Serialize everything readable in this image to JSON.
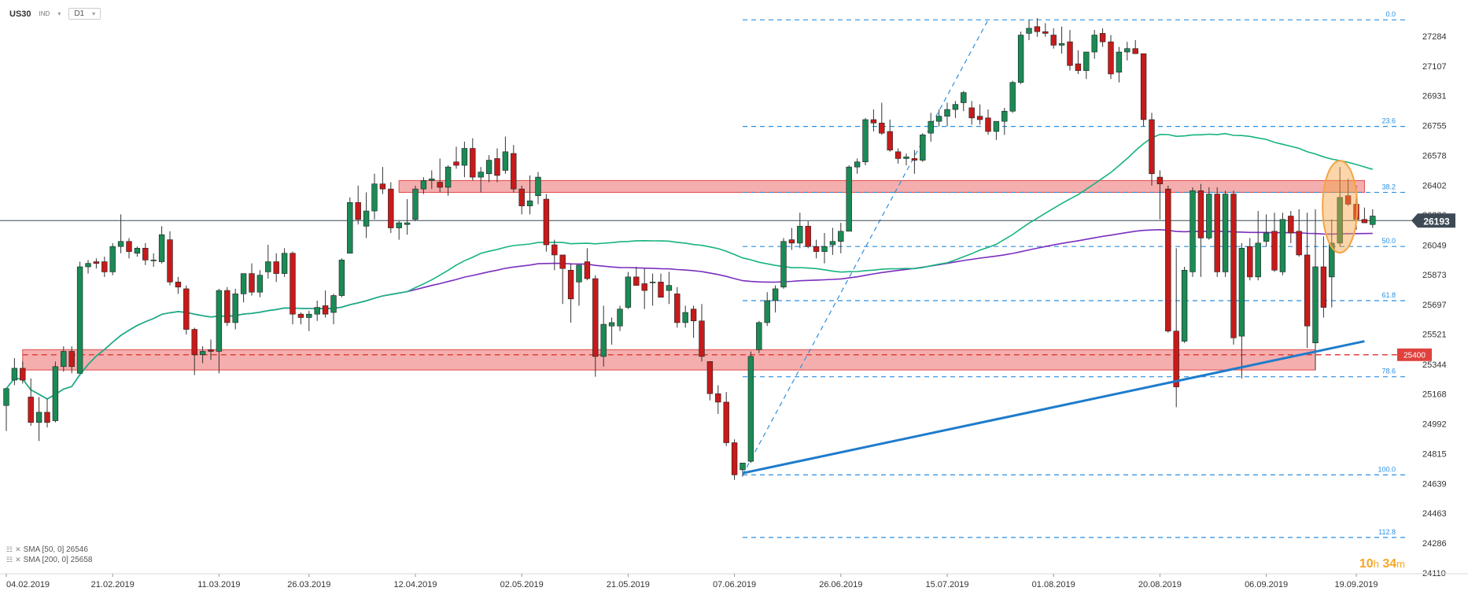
{
  "header": {
    "symbol": "US30",
    "instrument_type": "IND",
    "timeframe": "D1"
  },
  "legend": {
    "sma50": "SMA [50, 0] 26546",
    "sma200": "SMA [200, 0] 25658"
  },
  "timer": {
    "hours": "10",
    "h_unit": "h",
    "minutes": "34",
    "m_unit": "m"
  },
  "colors": {
    "bull": "#1b8a55",
    "bear": "#c71a1a",
    "sma50": "#16b381",
    "sma200": "#7b2fbf",
    "fib": "#2b8fe0",
    "trendline": "#1e7ccc",
    "zone_fill": "#f3a0a0",
    "zone_stroke": "#e04848",
    "price_tag": "#3d4a55",
    "level_tag": "#e0413d",
    "highlight": "#f5a342"
  },
  "chart_data": {
    "type": "candlestick",
    "instrument": "US30",
    "timeframe": "D1",
    "ylim": [
      24110,
      27460
    ],
    "y_ticks": [
      27284,
      27107,
      26931,
      26755,
      26578,
      26402,
      26226,
      26049,
      25873,
      25697,
      25521,
      25344,
      25168,
      24992,
      24815,
      24639,
      24463,
      24286,
      24110
    ],
    "x_tick_labels": [
      {
        "label": "04.02.2019",
        "bar": 0
      },
      {
        "label": "21.02.2019",
        "bar": 13
      },
      {
        "label": "11.03.2019",
        "bar": 26
      },
      {
        "label": "26.03.2019",
        "bar": 37
      },
      {
        "label": "12.04.2019",
        "bar": 50
      },
      {
        "label": "02.05.2019",
        "bar": 63
      },
      {
        "label": "21.05.2019",
        "bar": 76
      },
      {
        "label": "07.06.2019",
        "bar": 89
      },
      {
        "label": "26.06.2019",
        "bar": 102
      },
      {
        "label": "15.07.2019",
        "bar": 115
      },
      {
        "label": "01.08.2019",
        "bar": 128
      },
      {
        "label": "20.08.2019",
        "bar": 141
      },
      {
        "label": "06.09.2019",
        "bar": 154
      },
      {
        "label": "19.09.2019",
        "bar": 165
      }
    ],
    "candles_ohlc": [
      [
        25100,
        25200,
        24950,
        25200
      ],
      [
        25250,
        25380,
        25220,
        25320
      ],
      [
        25320,
        25360,
        25230,
        25250
      ],
      [
        25150,
        25260,
        24980,
        25000
      ],
      [
        25000,
        25150,
        24890,
        25060
      ],
      [
        25060,
        25140,
        24970,
        25000
      ],
      [
        25010,
        25360,
        25000,
        25330
      ],
      [
        25330,
        25450,
        25300,
        25420
      ],
      [
        25420,
        25450,
        25290,
        25330
      ],
      [
        25290,
        25950,
        25290,
        25920
      ],
      [
        25920,
        25960,
        25880,
        25940
      ],
      [
        25950,
        25970,
        25910,
        25940
      ],
      [
        25950,
        25980,
        25860,
        25890
      ],
      [
        25890,
        26060,
        25870,
        26040
      ],
      [
        26040,
        26230,
        26000,
        26070
      ],
      [
        26070,
        26090,
        25970,
        26010
      ],
      [
        26000,
        26040,
        25980,
        26030
      ],
      [
        26030,
        26060,
        25930,
        25960
      ],
      [
        25960,
        26000,
        25920,
        25960
      ],
      [
        25950,
        26160,
        25940,
        26110
      ],
      [
        26080,
        26130,
        25810,
        25830
      ],
      [
        25830,
        25860,
        25760,
        25800
      ],
      [
        25790,
        25810,
        25520,
        25550
      ],
      [
        25550,
        25560,
        25280,
        25400
      ],
      [
        25400,
        25450,
        25350,
        25420
      ],
      [
        25430,
        25490,
        25370,
        25420
      ],
      [
        25420,
        25790,
        25290,
        25780
      ],
      [
        25780,
        25800,
        25570,
        25590
      ],
      [
        25590,
        25790,
        25550,
        25760
      ],
      [
        25760,
        25880,
        25710,
        25880
      ],
      [
        25880,
        25940,
        25750,
        25770
      ],
      [
        25770,
        25900,
        25740,
        25870
      ],
      [
        25890,
        26050,
        25850,
        25950
      ],
      [
        25950,
        26000,
        25830,
        25880
      ],
      [
        25880,
        26030,
        25860,
        26000
      ],
      [
        26000,
        26010,
        25580,
        25640
      ],
      [
        25640,
        25650,
        25580,
        25620
      ],
      [
        25620,
        25660,
        25540,
        25640
      ],
      [
        25640,
        25720,
        25600,
        25680
      ],
      [
        25690,
        25780,
        25620,
        25640
      ],
      [
        25650,
        25760,
        25580,
        25750
      ],
      [
        25750,
        25970,
        25740,
        25960
      ],
      [
        26000,
        26330,
        26000,
        26300
      ],
      [
        26300,
        26400,
        26170,
        26200
      ],
      [
        26160,
        26360,
        26090,
        26250
      ],
      [
        26250,
        26470,
        26200,
        26410
      ],
      [
        26410,
        26510,
        26350,
        26380
      ],
      [
        26380,
        26420,
        26120,
        26150
      ],
      [
        26150,
        26190,
        26080,
        26180
      ],
      [
        26170,
        26320,
        26110,
        26180
      ],
      [
        26200,
        26400,
        26190,
        26380
      ],
      [
        26380,
        26450,
        26350,
        26430
      ],
      [
        26430,
        26490,
        26380,
        26440
      ],
      [
        26420,
        26560,
        26360,
        26390
      ],
      [
        26390,
        26520,
        26340,
        26510
      ],
      [
        26540,
        26630,
        26500,
        26520
      ],
      [
        26520,
        26660,
        26450,
        26620
      ],
      [
        26620,
        26680,
        26430,
        26450
      ],
      [
        26450,
        26510,
        26360,
        26480
      ],
      [
        26470,
        26580,
        26420,
        26550
      ],
      [
        26560,
        26620,
        26420,
        26460
      ],
      [
        26490,
        26690,
        26470,
        26600
      ],
      [
        26590,
        26640,
        26360,
        26380
      ],
      [
        26380,
        26400,
        26230,
        26280
      ],
      [
        26280,
        26460,
        26230,
        26310
      ],
      [
        26340,
        26480,
        26290,
        26450
      ],
      [
        26320,
        26350,
        26010,
        26050
      ],
      [
        26050,
        26080,
        25900,
        25990
      ],
      [
        25990,
        25990,
        25700,
        25910
      ],
      [
        25900,
        25940,
        25590,
        25730
      ],
      [
        25830,
        25920,
        25690,
        25930
      ],
      [
        25950,
        26030,
        25840,
        25850
      ],
      [
        25850,
        25870,
        25270,
        25390
      ],
      [
        25390,
        25690,
        25330,
        25580
      ],
      [
        25570,
        25620,
        25460,
        25590
      ],
      [
        25570,
        25690,
        25540,
        25670
      ],
      [
        25680,
        25890,
        25670,
        25860
      ],
      [
        25860,
        25920,
        25810,
        25810
      ],
      [
        25820,
        25910,
        25670,
        25780
      ],
      [
        25830,
        25880,
        25690,
        25830
      ],
      [
        25830,
        25880,
        25740,
        25740
      ],
      [
        25780,
        25890,
        25700,
        25810
      ],
      [
        25760,
        25800,
        25560,
        25590
      ],
      [
        25590,
        25690,
        25560,
        25650
      ],
      [
        25670,
        25690,
        25500,
        25600
      ],
      [
        25600,
        25700,
        25360,
        25390
      ],
      [
        25360,
        25360,
        25130,
        25170
      ],
      [
        25170,
        25220,
        25050,
        25120
      ],
      [
        25120,
        25180,
        24860,
        24880
      ],
      [
        24880,
        24900,
        24660,
        24690
      ],
      [
        24720,
        24760,
        24680,
        24760
      ],
      [
        24770,
        25420,
        24760,
        25390
      ],
      [
        25430,
        25600,
        25410,
        25590
      ],
      [
        25590,
        25770,
        25570,
        25720
      ],
      [
        25720,
        25810,
        25650,
        25790
      ],
      [
        25800,
        26090,
        25790,
        26070
      ],
      [
        26080,
        26150,
        26020,
        26060
      ],
      [
        26060,
        26240,
        26030,
        26160
      ],
      [
        26160,
        26190,
        26030,
        26040
      ],
      [
        26040,
        26080,
        25970,
        26010
      ],
      [
        26010,
        26120,
        25940,
        26040
      ],
      [
        26050,
        26150,
        25990,
        26070
      ],
      [
        26070,
        26180,
        26000,
        26130
      ],
      [
        26130,
        26520,
        26130,
        26510
      ],
      [
        26510,
        26560,
        26470,
        26540
      ],
      [
        26540,
        26800,
        26520,
        26790
      ],
      [
        26790,
        26850,
        26720,
        26770
      ],
      [
        26770,
        26890,
        26700,
        26710
      ],
      [
        26720,
        26790,
        26600,
        26610
      ],
      [
        26600,
        26620,
        26530,
        26560
      ],
      [
        26560,
        26590,
        26520,
        26570
      ],
      [
        26560,
        26610,
        26470,
        26550
      ],
      [
        26550,
        26710,
        26540,
        26700
      ],
      [
        26710,
        26830,
        26660,
        26780
      ],
      [
        26780,
        26850,
        26750,
        26810
      ],
      [
        26810,
        26890,
        26750,
        26850
      ],
      [
        26850,
        26900,
        26800,
        26880
      ],
      [
        26890,
        26960,
        26840,
        26950
      ],
      [
        26860,
        26900,
        26760,
        26800
      ],
      [
        26810,
        26880,
        26760,
        26790
      ],
      [
        26800,
        26850,
        26700,
        26720
      ],
      [
        26720,
        26780,
        26670,
        26780
      ],
      [
        26780,
        26860,
        26700,
        26840
      ],
      [
        26840,
        27020,
        26830,
        27010
      ],
      [
        27010,
        27310,
        27000,
        27290
      ],
      [
        27300,
        27380,
        27260,
        27330
      ],
      [
        27340,
        27390,
        27280,
        27310
      ],
      [
        27310,
        27360,
        27280,
        27300
      ],
      [
        27290,
        27330,
        27210,
        27230
      ],
      [
        27230,
        27340,
        27180,
        27240
      ],
      [
        27250,
        27320,
        27080,
        27110
      ],
      [
        27120,
        27200,
        27060,
        27080
      ],
      [
        27080,
        27190,
        27030,
        27190
      ],
      [
        27190,
        27320,
        27150,
        27290
      ],
      [
        27300,
        27330,
        27220,
        27250
      ],
      [
        27250,
        27290,
        27030,
        27060
      ],
      [
        27070,
        27220,
        27010,
        27190
      ],
      [
        27190,
        27250,
        27140,
        27210
      ],
      [
        27210,
        27260,
        27180,
        27180
      ],
      [
        27180,
        27180,
        26750,
        26790
      ],
      [
        26790,
        26830,
        26400,
        26470
      ],
      [
        26450,
        26490,
        26200,
        26410
      ],
      [
        26380,
        26400,
        25530,
        25540
      ],
      [
        25540,
        26030,
        25090,
        25210
      ],
      [
        25480,
        25920,
        25470,
        25900
      ],
      [
        25890,
        26390,
        25860,
        26370
      ],
      [
        26370,
        26410,
        25860,
        26090
      ],
      [
        26090,
        26390,
        26080,
        26350
      ],
      [
        26350,
        26390,
        25860,
        25890
      ],
      [
        25890,
        26370,
        25860,
        26350
      ],
      [
        26350,
        26370,
        25460,
        25500
      ],
      [
        25510,
        26060,
        25260,
        26030
      ],
      [
        26040,
        26090,
        25840,
        25860
      ],
      [
        25860,
        26250,
        25840,
        26060
      ],
      [
        26070,
        26230,
        26040,
        26120
      ],
      [
        26130,
        26240,
        25890,
        25900
      ],
      [
        25890,
        26240,
        25870,
        26200
      ],
      [
        26220,
        26250,
        26060,
        26120
      ],
      [
        26130,
        26260,
        25980,
        25990
      ],
      [
        25990,
        26240,
        25440,
        25570
      ],
      [
        25470,
        26260,
        25310,
        25920
      ],
      [
        25920,
        26100,
        25620,
        25680
      ],
      [
        25860,
        26200,
        25680,
        26060
      ],
      [
        26060,
        26510,
        26040,
        26330
      ],
      [
        26340,
        26440,
        26280,
        26290
      ],
      [
        26290,
        26400,
        26140,
        26200
      ],
      [
        26200,
        26270,
        26180,
        26180
      ],
      [
        26170,
        26260,
        26150,
        26220
      ]
    ],
    "sma50": {
      "name": "SMA [50, 0]",
      "last": 26546
    },
    "sma200": {
      "name": "SMA [200, 0]",
      "last": 25658
    },
    "fibonacci": [
      {
        "label": "0.0",
        "price": 27380
      },
      {
        "label": "23.6",
        "price": 26750
      },
      {
        "label": "38.2",
        "price": 26360
      },
      {
        "label": "50.0",
        "price": 26040
      },
      {
        "label": "61.8",
        "price": 25720
      },
      {
        "label": "78.6",
        "price": 25270
      },
      {
        "label": "100.0",
        "price": 24690
      },
      {
        "label": "112.8",
        "price": 24320
      }
    ],
    "zones": [
      {
        "name": "upper-resistance",
        "from_bar": 48,
        "to_bar": 166,
        "low": 26360,
        "high": 26430
      },
      {
        "name": "lower-support",
        "from_bar": 2,
        "to_bar": 160,
        "low": 25310,
        "high": 25430
      }
    ],
    "horizontal_level": {
      "label": "25400",
      "price": 25400
    },
    "current_price": {
      "label": "26193",
      "price": 26193
    },
    "trendline": {
      "from_bar": 90,
      "from_price": 24700,
      "to_bar": 166,
      "to_price": 25480
    },
    "fib_swing_line": {
      "from_bar": 90,
      "from_price": 24690,
      "to_bar": 120,
      "to_price": 27380
    },
    "highlight_bar": 163
  }
}
